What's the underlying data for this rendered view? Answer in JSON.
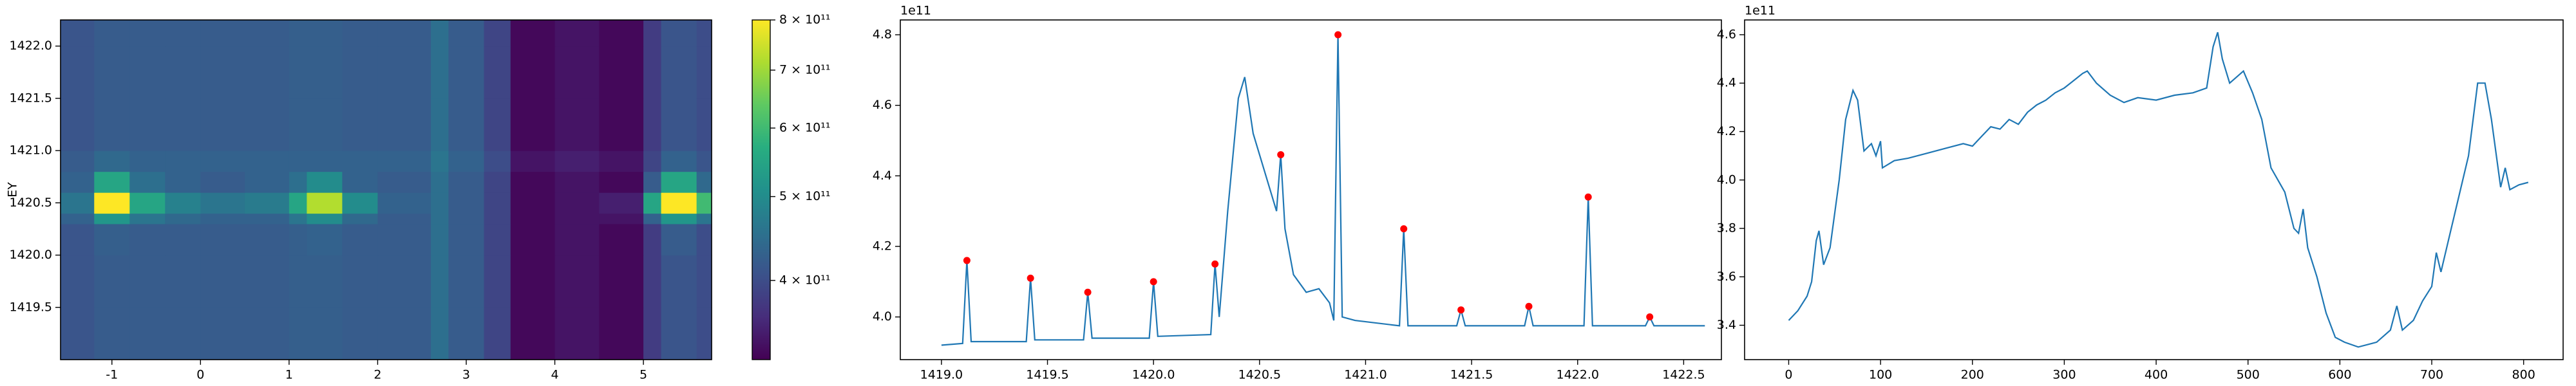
{
  "chart_data": [
    {
      "type": "heatmap",
      "ylabel": "EY",
      "xlim": [
        -1.58,
        5.77
      ],
      "ylim": [
        1419.0,
        1422.25
      ],
      "xticks": [
        -1,
        0,
        1,
        2,
        3,
        4,
        5
      ],
      "yticks": [
        1419.5,
        {
          "value": 1420,
          "label": "1420.0"
        },
        1420.5,
        {
          "value": 1421,
          "label": "1421.0"
        },
        1421.5,
        {
          "value": 1422,
          "label": "1422.0"
        }
      ],
      "x_edges": [
        -1.58,
        -1.2,
        -0.8,
        -0.4,
        0,
        0.5,
        1.0,
        1.2,
        1.6,
        2.0,
        2.6,
        2.8,
        3.2,
        3.5,
        4.0,
        4.5,
        5.0,
        5.2,
        5.6,
        5.77
      ],
      "y_edges": [
        1419.0,
        1419.5,
        1420.0,
        1420.3,
        1420.4,
        1420.6,
        1420.8,
        1421.0,
        1421.5,
        1422.0,
        1422.25
      ],
      "z": [
        [
          410000000000.0,
          420000000000.0,
          420000000000.0,
          420000000000.0,
          420000000000.0,
          420000000000.0,
          425000000000.0,
          425000000000.0,
          420000000000.0,
          420000000000.0,
          450000000000.0,
          420000000000.0,
          390000000000.0,
          330000000000.0,
          340000000000.0,
          330000000000.0,
          380000000000.0,
          410000000000.0,
          400000000000.0
        ],
        [
          410000000000.0,
          420000000000.0,
          420000000000.0,
          420000000000.0,
          420000000000.0,
          420000000000.0,
          425000000000.0,
          425000000000.0,
          420000000000.0,
          420000000000.0,
          450000000000.0,
          420000000000.0,
          390000000000.0,
          330000000000.0,
          340000000000.0,
          330000000000.0,
          380000000000.0,
          410000000000.0,
          400000000000.0
        ],
        [
          410000000000.0,
          425000000000.0,
          420000000000.0,
          420000000000.0,
          420000000000.0,
          420000000000.0,
          425000000000.0,
          430000000000.0,
          420000000000.0,
          420000000000.0,
          450000000000.0,
          420000000000.0,
          390000000000.0,
          330000000000.0,
          340000000000.0,
          330000000000.0,
          380000000000.0,
          420000000000.0,
          400000000000.0
        ],
        [
          430000000000.0,
          520000000000.0,
          460000000000.0,
          440000000000.0,
          430000000000.0,
          430000000000.0,
          460000000000.0,
          500000000000.0,
          440000000000.0,
          420000000000.0,
          450000000000.0,
          420000000000.0,
          390000000000.0,
          330000000000.0,
          340000000000.0,
          340000000000.0,
          430000000000.0,
          520000000000.0,
          460000000000.0
        ],
        [
          460000000000.0,
          800000000000.0,
          550000000000.0,
          480000000000.0,
          460000000000.0,
          470000000000.0,
          550000000000.0,
          720000000000.0,
          500000000000.0,
          430000000000.0,
          450000000000.0,
          420000000000.0,
          390000000000.0,
          330000000000.0,
          340000000000.0,
          350000000000.0,
          550000000000.0,
          800000000000.0,
          600000000000.0
        ],
        [
          430000000000.0,
          550000000000.0,
          450000000000.0,
          430000000000.0,
          420000000000.0,
          430000000000.0,
          450000000000.0,
          500000000000.0,
          430000000000.0,
          420000000000.0,
          450000000000.0,
          420000000000.0,
          390000000000.0,
          330000000000.0,
          340000000000.0,
          330000000000.0,
          420000000000.0,
          550000000000.0,
          440000000000.0
        ],
        [
          420000000000.0,
          440000000000.0,
          430000000000.0,
          430000000000.0,
          430000000000.0,
          430000000000.0,
          430000000000.0,
          430000000000.0,
          430000000000.0,
          430000000000.0,
          460000000000.0,
          430000000000.0,
          400000000000.0,
          340000000000.0,
          350000000000.0,
          340000000000.0,
          390000000000.0,
          430000000000.0,
          410000000000.0
        ],
        [
          410000000000.0,
          420000000000.0,
          420000000000.0,
          420000000000.0,
          420000000000.0,
          420000000000.0,
          425000000000.0,
          425000000000.0,
          420000000000.0,
          420000000000.0,
          450000000000.0,
          420000000000.0,
          390000000000.0,
          330000000000.0,
          340000000000.0,
          330000000000.0,
          380000000000.0,
          410000000000.0,
          400000000000.0
        ],
        [
          410000000000.0,
          420000000000.0,
          420000000000.0,
          420000000000.0,
          420000000000.0,
          420000000000.0,
          425000000000.0,
          425000000000.0,
          420000000000.0,
          420000000000.0,
          450000000000.0,
          420000000000.0,
          390000000000.0,
          330000000000.0,
          340000000000.0,
          330000000000.0,
          380000000000.0,
          410000000000.0,
          400000000000.0
        ],
        [
          410000000000.0,
          420000000000.0,
          420000000000.0,
          420000000000.0,
          420000000000.0,
          420000000000.0,
          425000000000.0,
          425000000000.0,
          420000000000.0,
          420000000000.0,
          450000000000.0,
          420000000000.0,
          390000000000.0,
          330000000000.0,
          340000000000.0,
          330000000000.0,
          380000000000.0,
          410000000000.0,
          400000000000.0
        ]
      ],
      "colorbar": {
        "log": true,
        "clim": [
          324000000000.0,
          800000000000.0
        ],
        "ticks": [
          {
            "value": 400000000000.0,
            "label": "4 × 10¹¹"
          },
          {
            "value": 500000000000.0,
            "label": "5 × 10¹¹"
          },
          {
            "value": 600000000000.0,
            "label": "6 × 10¹¹"
          },
          {
            "value": 700000000000.0,
            "label": "7 × 10¹¹"
          },
          {
            "value": 800000000000.0,
            "label": "8 × 10¹¹"
          }
        ]
      }
    },
    {
      "type": "line",
      "offset_label": "1e11",
      "xlim": [
        1418.806,
        1422.678
      ],
      "ylim": [
        3.879,
        4.842
      ],
      "xticks": [
        {
          "value": 1419,
          "label": "1419.0"
        },
        1419.5,
        {
          "value": 1420,
          "label": "1420.0"
        },
        1420.5,
        {
          "value": 1421,
          "label": "1421.0"
        },
        1421.5,
        {
          "value": 1422,
          "label": "1422.0"
        },
        1422.5
      ],
      "yticks": [
        {
          "value": 4,
          "label": "4.0"
        },
        4.2,
        4.4,
        4.6,
        4.8
      ],
      "series": [
        {
          "color": "#1f77b4",
          "x": [
            1419.0,
            1419.1,
            1419.12,
            1419.14,
            1419.4,
            1419.42,
            1419.44,
            1419.67,
            1419.69,
            1419.71,
            1419.98,
            1420.0,
            1420.02,
            1420.27,
            1420.29,
            1420.31,
            1420.35,
            1420.4,
            1420.43,
            1420.47,
            1420.53,
            1420.58,
            1420.6,
            1420.62,
            1420.66,
            1420.72,
            1420.78,
            1420.83,
            1420.85,
            1420.87,
            1420.89,
            1420.95,
            1421.16,
            1421.18,
            1421.2,
            1421.43,
            1421.45,
            1421.47,
            1421.75,
            1421.77,
            1421.79,
            1422.03,
            1422.05,
            1422.07,
            1422.32,
            1422.34,
            1422.36,
            1422.6
          ],
          "values": [
            3.92,
            3.925,
            4.16,
            3.93,
            3.93,
            4.11,
            3.935,
            3.935,
            4.07,
            3.94,
            3.94,
            4.1,
            3.945,
            3.95,
            4.15,
            4.0,
            4.3,
            4.62,
            4.68,
            4.52,
            4.4,
            4.3,
            4.46,
            4.25,
            4.12,
            4.07,
            4.08,
            4.04,
            3.99,
            4.8,
            4.0,
            3.99,
            3.975,
            4.25,
            3.975,
            3.975,
            4.02,
            3.975,
            3.975,
            4.03,
            3.975,
            3.975,
            4.34,
            3.975,
            3.975,
            4.0,
            3.975,
            3.975
          ]
        },
        {
          "color": "#ff0000",
          "marker": "dot",
          "x": [
            1419.12,
            1419.42,
            1419.69,
            1420.0,
            1420.29,
            1420.6,
            1420.87,
            1421.18,
            1421.45,
            1421.77,
            1422.05,
            1422.34
          ],
          "values": [
            4.16,
            4.11,
            4.07,
            4.1,
            4.15,
            4.46,
            4.8,
            4.25,
            4.02,
            4.03,
            4.34,
            4.0
          ]
        }
      ]
    },
    {
      "type": "line",
      "offset_label": "1e11",
      "xlim": [
        -48,
        843
      ],
      "ylim": [
        3.258,
        4.661
      ],
      "xticks": [
        0,
        100,
        200,
        300,
        400,
        500,
        600,
        700,
        800
      ],
      "yticks": [
        3.4,
        3.6,
        3.8,
        {
          "value": 4,
          "label": "4.0"
        },
        4.2,
        4.4,
        4.6
      ],
      "series": [
        {
          "color": "#1f77b4",
          "x": [
            0,
            10,
            20,
            25,
            30,
            33,
            38,
            45,
            55,
            62,
            70,
            75,
            82,
            90,
            95,
            100,
            102,
            115,
            130,
            150,
            170,
            190,
            200,
            210,
            220,
            230,
            240,
            250,
            260,
            270,
            280,
            290,
            300,
            310,
            320,
            325,
            335,
            350,
            365,
            380,
            400,
            420,
            440,
            455,
            462,
            467,
            472,
            480,
            495,
            505,
            515,
            525,
            540,
            550,
            555,
            560,
            565,
            575,
            585,
            595,
            605,
            620,
            640,
            655,
            662,
            668,
            680,
            690,
            700,
            705,
            710,
            720,
            740,
            750,
            758,
            765,
            775,
            780,
            785,
            795,
            805
          ],
          "values": [
            3.42,
            3.46,
            3.52,
            3.58,
            3.75,
            3.79,
            3.65,
            3.72,
            4.0,
            4.25,
            4.37,
            4.33,
            4.12,
            4.15,
            4.1,
            4.16,
            4.05,
            4.08,
            4.09,
            4.11,
            4.13,
            4.15,
            4.14,
            4.18,
            4.22,
            4.21,
            4.25,
            4.23,
            4.28,
            4.31,
            4.33,
            4.36,
            4.38,
            4.41,
            4.44,
            4.45,
            4.4,
            4.35,
            4.32,
            4.34,
            4.33,
            4.35,
            4.36,
            4.38,
            4.55,
            4.61,
            4.5,
            4.4,
            4.45,
            4.36,
            4.25,
            4.05,
            3.95,
            3.8,
            3.78,
            3.88,
            3.72,
            3.6,
            3.45,
            3.35,
            3.33,
            3.31,
            3.33,
            3.38,
            3.48,
            3.38,
            3.42,
            3.5,
            3.56,
            3.7,
            3.62,
            3.78,
            4.1,
            4.4,
            4.4,
            4.25,
            3.97,
            4.05,
            3.96,
            3.98,
            3.99
          ]
        }
      ]
    }
  ]
}
